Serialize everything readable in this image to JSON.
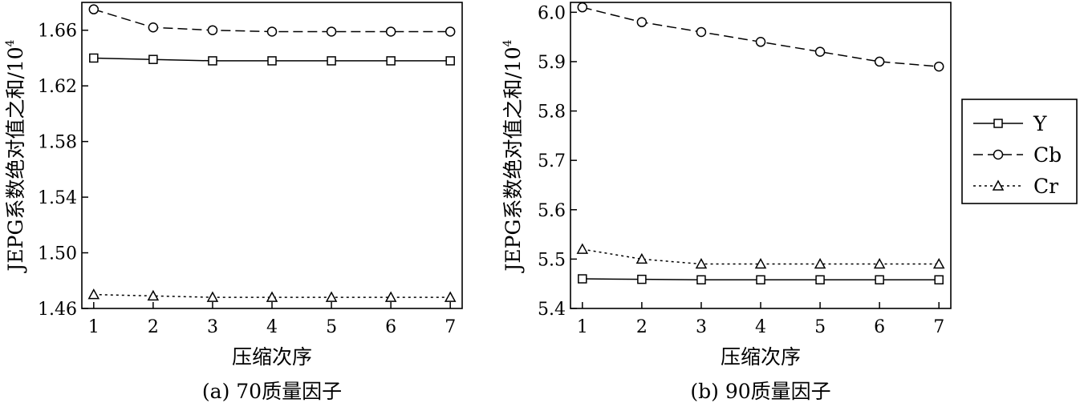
{
  "chart_data": [
    {
      "type": "line",
      "caption": "(a) 70质量因子",
      "xlabel": "压缩次序",
      "ylabel": "JEPG系数绝对值之和/10",
      "ylabel_exponent": "4",
      "categories": [
        1,
        2,
        3,
        4,
        5,
        6,
        7
      ],
      "xlim": [
        0.8,
        7.2
      ],
      "ylim": [
        1.46,
        1.68
      ],
      "yticks": [
        "1.46",
        "1.50",
        "1.54",
        "1.58",
        "1.62",
        "1.66"
      ],
      "yticks_values": [
        1.46,
        1.5,
        1.54,
        1.58,
        1.62,
        1.66
      ],
      "series": [
        {
          "name": "Y",
          "marker": "square",
          "dash": "solid",
          "values": [
            1.64,
            1.639,
            1.638,
            1.638,
            1.638,
            1.638,
            1.638
          ]
        },
        {
          "name": "Cb",
          "marker": "circle",
          "dash": "dashed",
          "values": [
            1.675,
            1.662,
            1.66,
            1.659,
            1.659,
            1.659,
            1.659
          ]
        },
        {
          "name": "Cr",
          "marker": "triangle",
          "dash": "dotted",
          "values": [
            1.47,
            1.469,
            1.468,
            1.468,
            1.468,
            1.468,
            1.468
          ]
        }
      ]
    },
    {
      "type": "line",
      "caption": "(b) 90质量因子",
      "xlabel": "压缩次序",
      "ylabel": "JEPG系数绝对值之和/10",
      "ylabel_exponent": "4",
      "categories": [
        1,
        2,
        3,
        4,
        5,
        6,
        7
      ],
      "xlim": [
        0.8,
        7.2
      ],
      "ylim": [
        5.4,
        6.02
      ],
      "yticks": [
        "5.4",
        "5.5",
        "5.6",
        "5.7",
        "5.8",
        "5.9",
        "6.0"
      ],
      "yticks_values": [
        5.4,
        5.5,
        5.6,
        5.7,
        5.8,
        5.9,
        6.0
      ],
      "series": [
        {
          "name": "Y",
          "marker": "square",
          "dash": "solid",
          "values": [
            5.46,
            5.459,
            5.458,
            5.458,
            5.458,
            5.458,
            5.458
          ]
        },
        {
          "name": "Cb",
          "marker": "circle",
          "dash": "dashed",
          "values": [
            6.01,
            5.98,
            5.96,
            5.94,
            5.92,
            5.9,
            5.89
          ]
        },
        {
          "name": "Cr",
          "marker": "triangle",
          "dash": "dotted",
          "values": [
            5.52,
            5.5,
            5.49,
            5.49,
            5.49,
            5.49,
            5.49
          ]
        }
      ]
    }
  ],
  "legend": {
    "position": "right",
    "entries": [
      {
        "label": "Y",
        "marker": "square",
        "dash": "solid"
      },
      {
        "label": "Cb",
        "marker": "circle",
        "dash": "dashed"
      },
      {
        "label": "Cr",
        "marker": "triangle",
        "dash": "dotted"
      }
    ]
  },
  "colors": {
    "line": "#000000",
    "background": "#ffffff"
  }
}
